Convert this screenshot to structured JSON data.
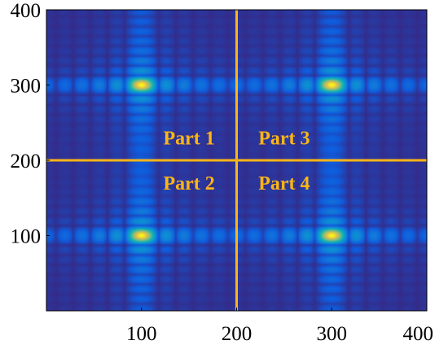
{
  "chart_data": {
    "type": "heatmap",
    "title": "",
    "xlabel": "",
    "ylabel": "",
    "xlim": [
      0,
      400
    ],
    "ylim": [
      0,
      400
    ],
    "x_ticks": [
      100,
      200,
      300,
      400
    ],
    "y_ticks": [
      100,
      200,
      300,
      400
    ],
    "x_tick_labels": [
      "100",
      "200",
      "300",
      "400"
    ],
    "y_tick_labels": [
      "100",
      "200",
      "300",
      "400"
    ],
    "colormap": "parula",
    "peaks": [
      {
        "x": 100,
        "y": 300
      },
      {
        "x": 300,
        "y": 300
      },
      {
        "x": 100,
        "y": 100
      },
      {
        "x": 300,
        "y": 100
      }
    ],
    "divider_lines": [
      {
        "orientation": "vertical",
        "value": 200
      },
      {
        "orientation": "horizontal",
        "value": 200
      }
    ],
    "divider_color": "#FDB515",
    "annotations": [
      {
        "text": "Part 1",
        "x": 150,
        "y": 230
      },
      {
        "text": "Part 3",
        "x": 250,
        "y": 230
      },
      {
        "text": "Part 2",
        "x": 150,
        "y": 170
      },
      {
        "text": "Part 4",
        "x": 250,
        "y": 170
      }
    ],
    "grid": false,
    "legend": "none"
  }
}
